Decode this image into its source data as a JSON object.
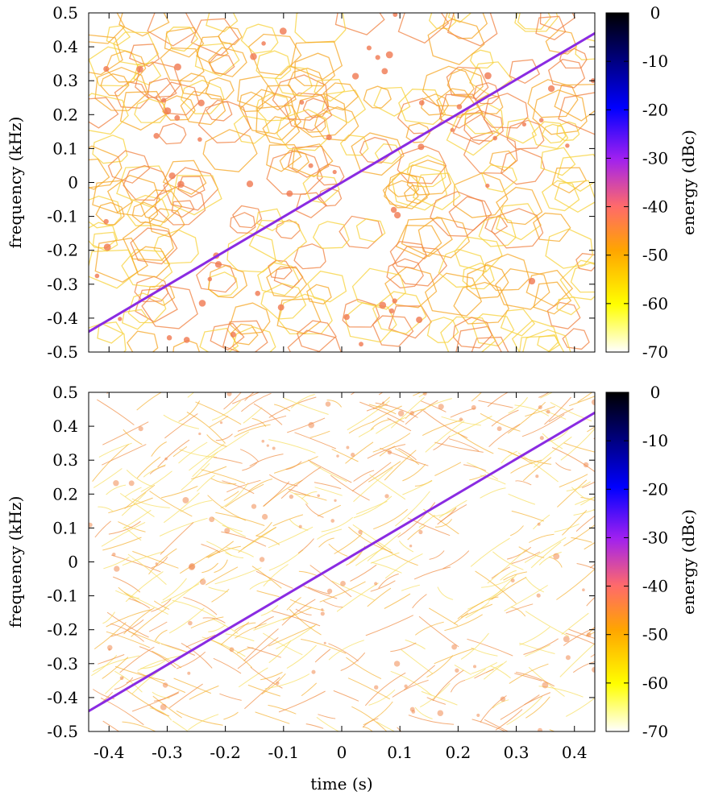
{
  "chart_data": [
    {
      "type": "heatmap",
      "panel": "top",
      "title": "",
      "xlabel": "",
      "ylabel": "frequency (kHz)",
      "xlim": [
        -0.435,
        0.435
      ],
      "ylim": [
        -0.5,
        0.5
      ],
      "xticks": [
        -0.4,
        -0.3,
        -0.2,
        -0.1,
        0,
        0.1,
        0.2,
        0.3,
        0.4
      ],
      "xtick_labels_shown": false,
      "yticks": [
        0.5,
        0.4,
        0.3,
        0.2,
        0.1,
        0,
        -0.1,
        -0.2,
        -0.3,
        -0.4,
        -0.5
      ],
      "ytick_labels": [
        "0.5",
        "0.4",
        "0.3",
        "0.2",
        "0.1",
        "0",
        "-0.1",
        "-0.2",
        "-0.3",
        "-0.4",
        "-0.5"
      ],
      "colorbar": {
        "label": "energy (dBc)",
        "range": [
          -70,
          0
        ],
        "ticks": [
          "0",
          "-10",
          "-20",
          "-30",
          "-40",
          "-50",
          "-60",
          "-70"
        ],
        "colormap": [
          "#ffffff",
          "#ffff00",
          "#ffa500",
          "#ff6a6a",
          "#a020f0",
          "#0000ff",
          "#000000"
        ]
      },
      "features": [
        {
          "kind": "linear chirp",
          "start": [
            -0.435,
            -0.44
          ],
          "end": [
            0.435,
            0.44
          ],
          "energy_dBc": -30,
          "color": "#8a2be2"
        },
        {
          "kind": "background cellular pattern",
          "energy_dBc_range": [
            -65,
            -45
          ],
          "color": "#f5a623"
        }
      ]
    },
    {
      "type": "heatmap",
      "panel": "bottom",
      "title": "",
      "xlabel": "time (s)",
      "ylabel": "frequency (kHz)",
      "xlim": [
        -0.435,
        0.435
      ],
      "ylim": [
        -0.5,
        0.5
      ],
      "xticks": [
        -0.4,
        -0.3,
        -0.2,
        -0.1,
        0,
        0.1,
        0.2,
        0.3,
        0.4
      ],
      "xtick_labels": [
        "-0.4",
        "-0.3",
        "-0.2",
        "-0.1",
        "0",
        "0.1",
        "0.2",
        "0.3",
        "0.4"
      ],
      "yticks": [
        0.5,
        0.4,
        0.3,
        0.2,
        0.1,
        0,
        -0.1,
        -0.2,
        -0.3,
        -0.4,
        -0.5
      ],
      "ytick_labels": [
        "0.5",
        "0.4",
        "0.3",
        "0.2",
        "0.1",
        "0",
        "-0.1",
        "-0.2",
        "-0.3",
        "-0.4",
        "-0.5"
      ],
      "colorbar": {
        "label": "energy (dBc)",
        "range": [
          -70,
          0
        ],
        "ticks": [
          "0",
          "-10",
          "-20",
          "-30",
          "-40",
          "-50",
          "-60",
          "-70"
        ],
        "colormap": [
          "#ffffff",
          "#ffff00",
          "#ffa500",
          "#ff6a6a",
          "#a020f0",
          "#0000ff",
          "#000000"
        ]
      },
      "features": [
        {
          "kind": "linear chirp",
          "start": [
            -0.435,
            -0.44
          ],
          "end": [
            0.435,
            0.44
          ],
          "energy_dBc": -30,
          "color": "#8a2be2"
        },
        {
          "kind": "background streak pattern",
          "energy_dBc_range": [
            -65,
            -45
          ],
          "color": "#f5a623"
        }
      ]
    }
  ]
}
